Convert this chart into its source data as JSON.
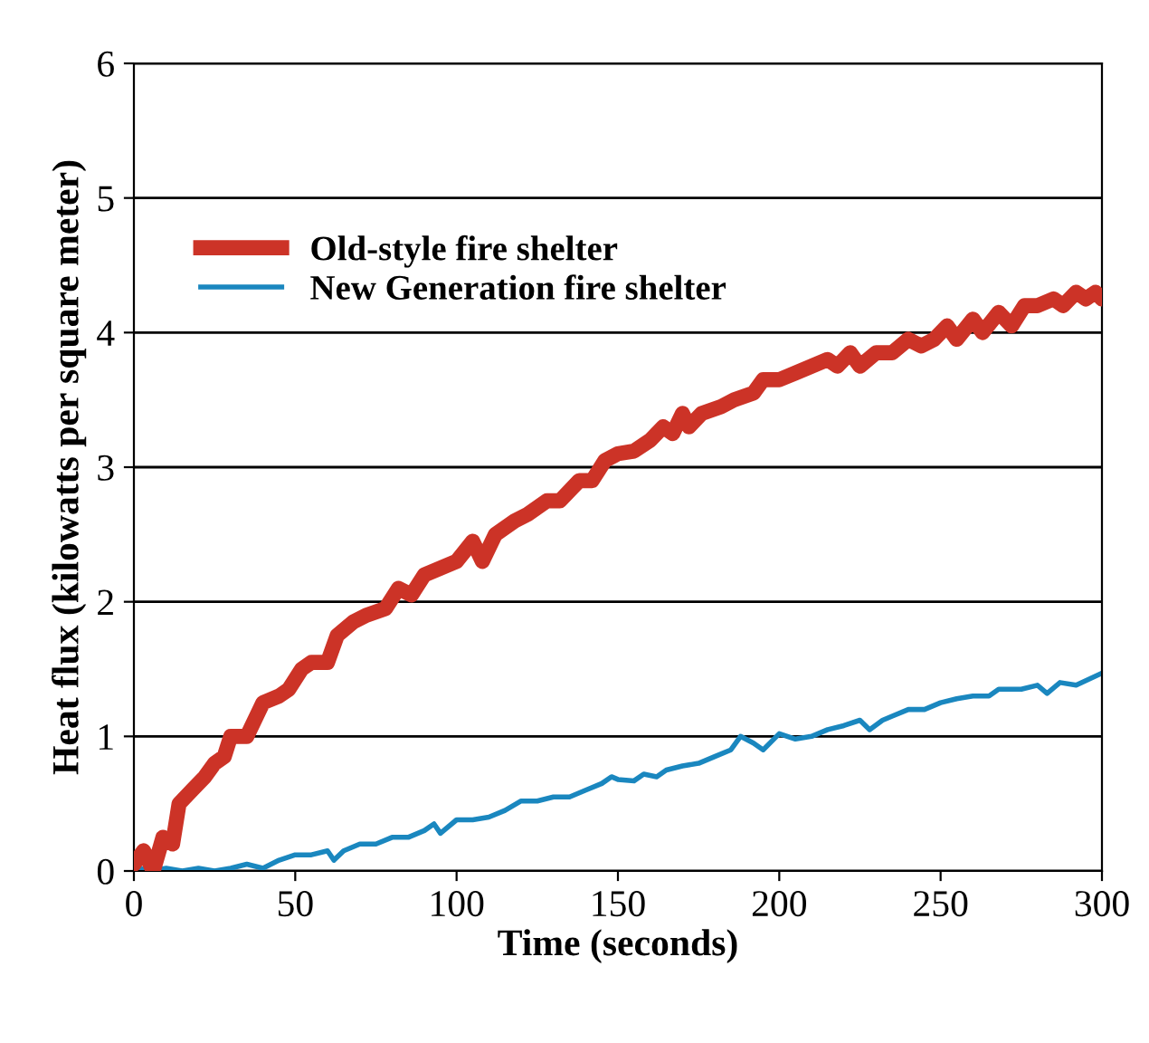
{
  "chart_data": {
    "type": "line",
    "xlabel": "Time (seconds)",
    "ylabel": "Heat flux (kilowatts per square meter)",
    "xlim": [
      0,
      300
    ],
    "ylim": [
      0,
      6
    ],
    "xticks": [
      0,
      50,
      100,
      150,
      200,
      250,
      300
    ],
    "yticks": [
      0,
      1,
      2,
      3,
      4,
      5,
      6
    ],
    "grid": "y",
    "legend": "top left",
    "line_style": "solid",
    "series": [
      {
        "name": "Old-style fire shelter",
        "color": "#cc3327",
        "x": [
          0,
          3,
          6,
          9,
          12,
          14,
          18,
          22,
          25,
          28,
          30,
          35,
          40,
          45,
          48,
          52,
          55,
          60,
          63,
          68,
          72,
          78,
          82,
          86,
          90,
          95,
          100,
          105,
          108,
          112,
          118,
          122,
          128,
          132,
          138,
          142,
          146,
          150,
          155,
          160,
          164,
          167,
          170,
          172,
          176,
          182,
          186,
          192,
          195,
          200,
          205,
          210,
          215,
          218,
          222,
          225,
          230,
          235,
          240,
          244,
          248,
          252,
          255,
          260,
          263,
          268,
          272,
          276,
          280,
          285,
          288,
          292,
          295,
          298,
          300
        ],
        "values": [
          0.05,
          0.15,
          0.0,
          0.25,
          0.2,
          0.5,
          0.6,
          0.7,
          0.8,
          0.85,
          1.0,
          1.0,
          1.25,
          1.3,
          1.35,
          1.5,
          1.55,
          1.55,
          1.75,
          1.85,
          1.9,
          1.95,
          2.1,
          2.05,
          2.2,
          2.25,
          2.3,
          2.45,
          2.3,
          2.5,
          2.6,
          2.65,
          2.75,
          2.75,
          2.9,
          2.9,
          3.05,
          3.1,
          3.12,
          3.2,
          3.3,
          3.25,
          3.4,
          3.3,
          3.4,
          3.45,
          3.5,
          3.55,
          3.65,
          3.65,
          3.7,
          3.75,
          3.8,
          3.75,
          3.85,
          3.75,
          3.85,
          3.85,
          3.95,
          3.9,
          3.95,
          4.05,
          3.95,
          4.1,
          4.0,
          4.15,
          4.05,
          4.2,
          4.2,
          4.25,
          4.2,
          4.3,
          4.25,
          4.3,
          4.25
        ]
      },
      {
        "name": "New Generation fire shelter",
        "color": "#1a87bf",
        "x": [
          0,
          5,
          10,
          15,
          20,
          25,
          30,
          35,
          40,
          45,
          50,
          55,
          60,
          62,
          65,
          70,
          75,
          80,
          85,
          90,
          93,
          95,
          100,
          105,
          110,
          115,
          120,
          125,
          130,
          135,
          140,
          145,
          148,
          150,
          155,
          158,
          162,
          165,
          170,
          175,
          180,
          185,
          188,
          192,
          195,
          200,
          205,
          210,
          215,
          220,
          225,
          228,
          232,
          235,
          240,
          245,
          250,
          255,
          260,
          265,
          268,
          275,
          280,
          283,
          287,
          292,
          300
        ],
        "values": [
          0.03,
          0.0,
          0.02,
          0.0,
          0.02,
          0.0,
          0.02,
          0.05,
          0.02,
          0.08,
          0.12,
          0.12,
          0.15,
          0.08,
          0.15,
          0.2,
          0.2,
          0.25,
          0.25,
          0.3,
          0.35,
          0.28,
          0.38,
          0.38,
          0.4,
          0.45,
          0.52,
          0.52,
          0.55,
          0.55,
          0.6,
          0.65,
          0.7,
          0.68,
          0.67,
          0.72,
          0.7,
          0.75,
          0.78,
          0.8,
          0.85,
          0.9,
          1.0,
          0.95,
          0.9,
          1.02,
          0.98,
          1.0,
          1.05,
          1.08,
          1.12,
          1.05,
          1.12,
          1.15,
          1.2,
          1.2,
          1.25,
          1.28,
          1.3,
          1.3,
          1.35,
          1.35,
          1.38,
          1.32,
          1.4,
          1.38,
          1.47
        ]
      }
    ]
  }
}
